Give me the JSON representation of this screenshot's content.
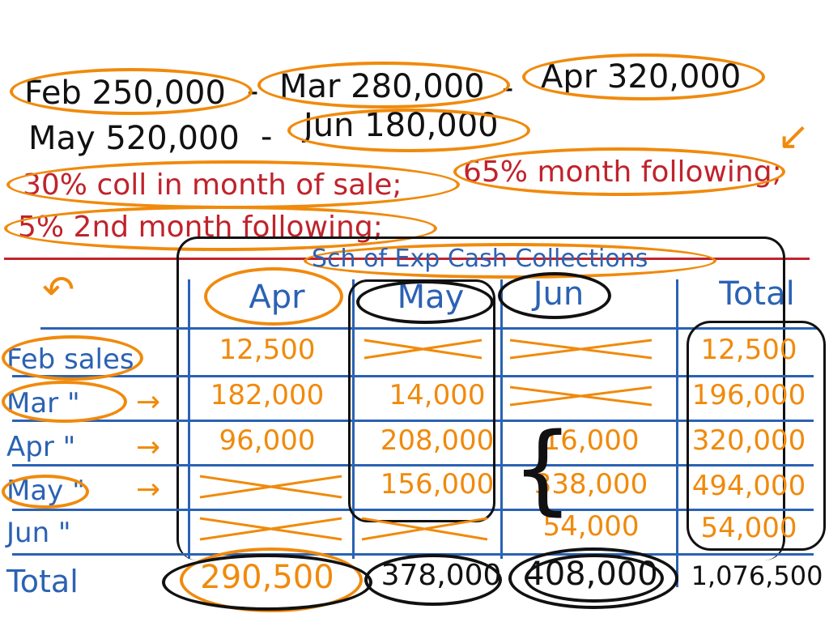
{
  "header": {
    "feb": "Feb 250,000",
    "mar": "Mar 280,000",
    "apr": "Apr 320,000",
    "may": "May 520,000",
    "jun": "Jun 180,000",
    "dash": "-",
    "coll1": "30% coll in month of sale;",
    "coll2": "65% month following;",
    "coll3": "5% 2nd month following;"
  },
  "schedule": {
    "title": "Sch of Exp Cash Collections",
    "columns": [
      "Apr",
      "May",
      "Jun",
      "Total"
    ],
    "rows": [
      {
        "label": "Feb sales",
        "apr": "12,500",
        "may": "",
        "jun": "",
        "total": "12,500"
      },
      {
        "label": "Mar \"",
        "apr": "182,000",
        "may": "14,000",
        "jun": "",
        "total": "196,000"
      },
      {
        "label": "Apr \"",
        "apr": "96,000",
        "may": "208,000",
        "jun": "16,000",
        "total": "320,000"
      },
      {
        "label": "May \"",
        "apr": "",
        "may": "156,000",
        "jun": "338,000",
        "total": "494,000"
      },
      {
        "label": "Jun \"",
        "apr": "",
        "may": "",
        "jun": "54,000",
        "total": "54,000"
      }
    ],
    "total_label": "Total",
    "totals": {
      "apr": "290,500",
      "may": "378,000",
      "jun": "408,000",
      "total": "1,076,500"
    }
  },
  "colors": {
    "ink_black": "#111111",
    "ink_red": "#c0232c",
    "ink_blue": "#2b62b3",
    "ink_orange": "#f08a0c"
  }
}
